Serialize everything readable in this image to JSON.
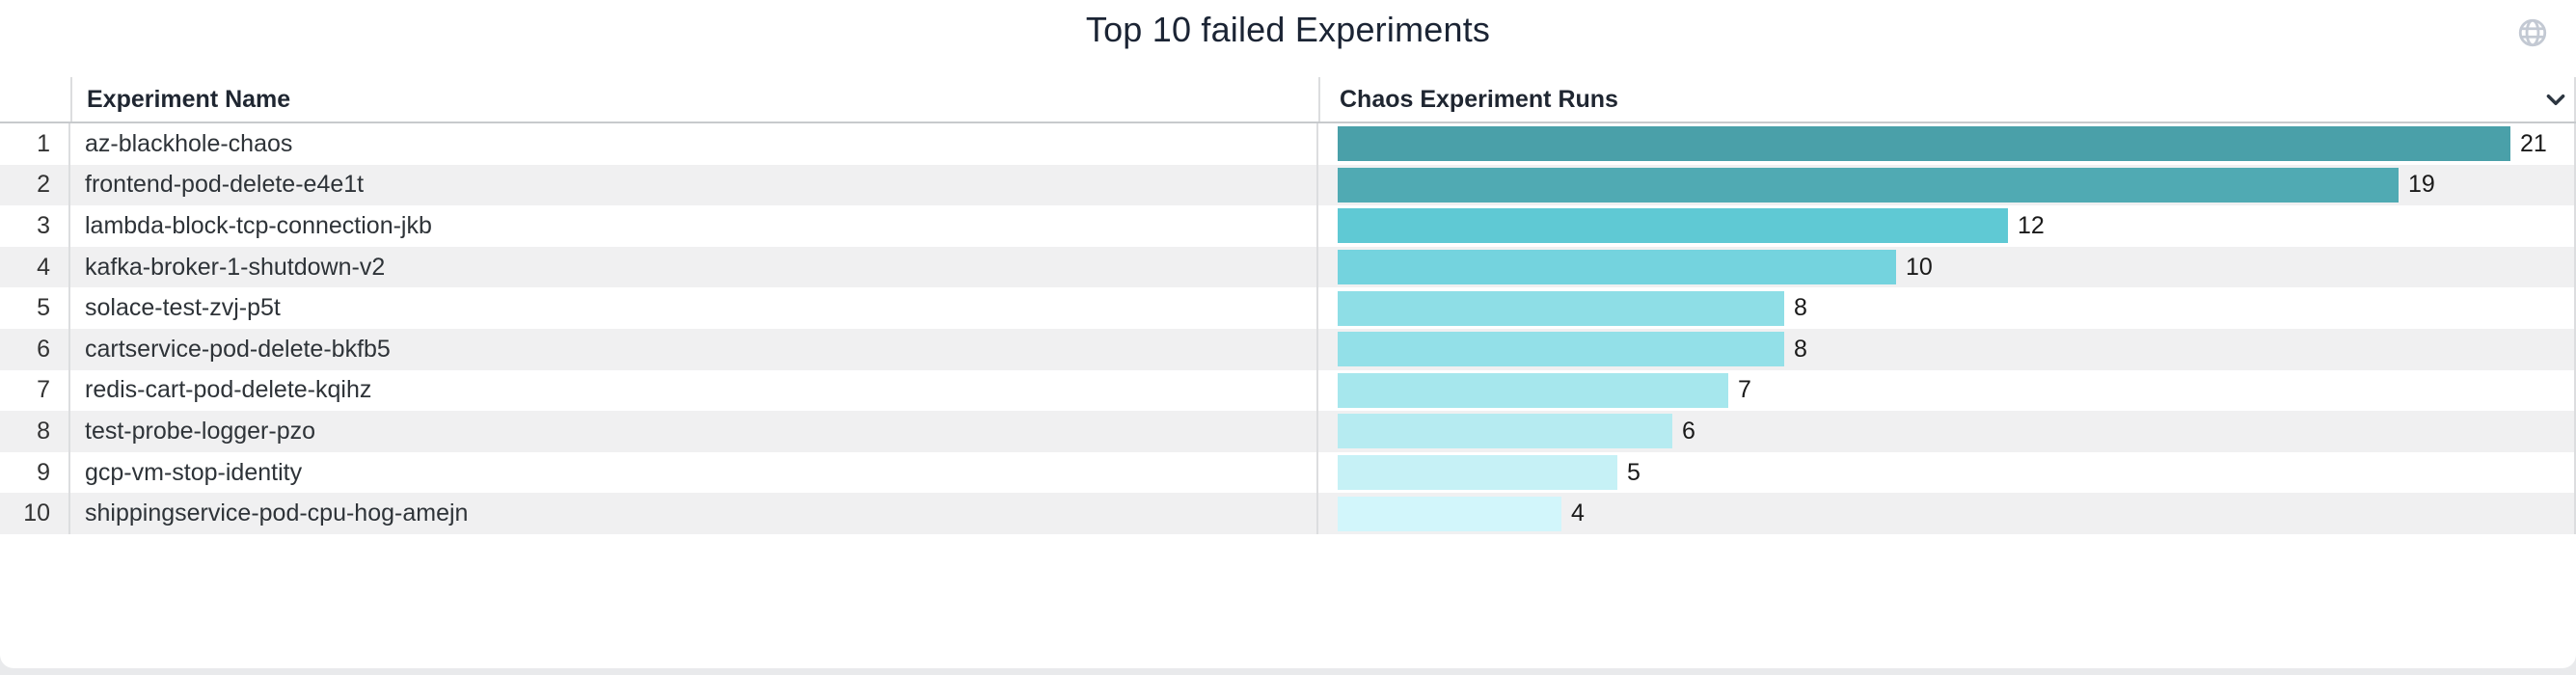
{
  "panel": {
    "title": "Top 10 failed Experiments",
    "globe_icon": "globe-icon",
    "globe_color": "#c3c9d3",
    "chevron_icon": "chevron-down-icon",
    "chevron_color": "#2c3540"
  },
  "table": {
    "columns": [
      "Experiment Name",
      "Chaos Experiment Runs"
    ],
    "rows": [
      {
        "rank": "1",
        "name": "az-blackhole-chaos",
        "value": 21,
        "color": "#4aa0a9"
      },
      {
        "rank": "2",
        "name": "frontend-pod-delete-e4e1t",
        "value": 19,
        "color": "#50aab3"
      },
      {
        "rank": "3",
        "name": "lambda-block-tcp-connection-jkb",
        "value": 12,
        "color": "#5fc9d4"
      },
      {
        "rank": "4",
        "name": "kafka-broker-1-shutdown-v2",
        "value": 10,
        "color": "#74d3de"
      },
      {
        "rank": "5",
        "name": "solace-test-zvj-p5t",
        "value": 8,
        "color": "#8edee6"
      },
      {
        "rank": "6",
        "name": "cartservice-pod-delete-bkfb5",
        "value": 8,
        "color": "#93e0e8"
      },
      {
        "rank": "7",
        "name": "redis-cart-pod-delete-kqihz",
        "value": 7,
        "color": "#a6e7ed"
      },
      {
        "rank": "8",
        "name": "test-probe-logger-pzo",
        "value": 6,
        "color": "#b6ebf1"
      },
      {
        "rank": "9",
        "name": "gcp-vm-stop-identity",
        "value": 5,
        "color": "#c6f1f6"
      },
      {
        "rank": "10",
        "name": "shippingservice-pod-cpu-hog-amejn",
        "value": 4,
        "color": "#d2f6fb"
      }
    ]
  },
  "chart_data": {
    "type": "bar",
    "orientation": "horizontal",
    "title": "Top 10 failed Experiments",
    "xlabel": "Chaos Experiment Runs",
    "ylabel": "Experiment Name",
    "categories": [
      "az-blackhole-chaos",
      "frontend-pod-delete-e4e1t",
      "lambda-block-tcp-connection-jkb",
      "kafka-broker-1-shutdown-v2",
      "solace-test-zvj-p5t",
      "cartservice-pod-delete-bkfb5",
      "redis-cart-pod-delete-kqihz",
      "test-probe-logger-pzo",
      "gcp-vm-stop-identity",
      "shippingservice-pod-cpu-hog-amejn"
    ],
    "values": [
      21,
      19,
      12,
      10,
      8,
      8,
      7,
      6,
      5,
      4
    ],
    "value_labels_shown": true,
    "xlim": [
      0,
      22
    ],
    "grid": false,
    "legend": false,
    "palette_note": "sequential teal, darkest for largest value"
  }
}
